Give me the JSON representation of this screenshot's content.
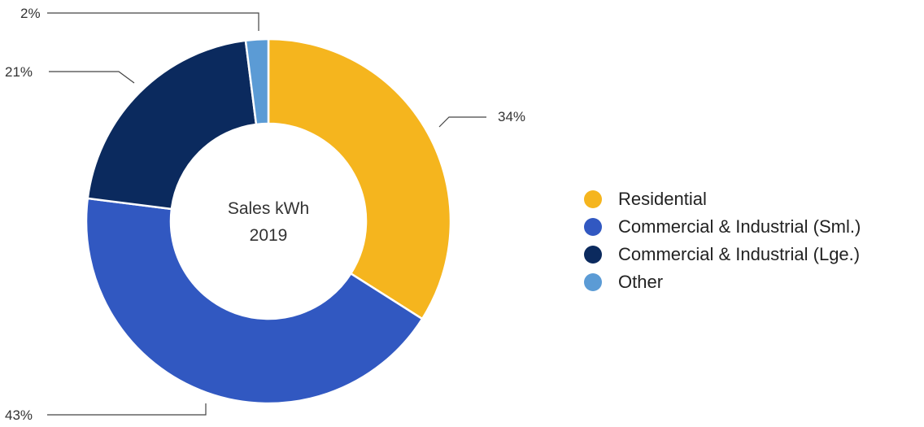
{
  "chart_data": {
    "type": "pie",
    "donut": true,
    "title": "",
    "center_label": [
      "Sales kWh",
      "2019"
    ],
    "series": [
      {
        "name": "Residential",
        "value": 34,
        "label": "34%",
        "color": "#F5B51E"
      },
      {
        "name": "Commercial & Industrial (Sml.)",
        "value": 43,
        "label": "43%",
        "color": "#3158C1"
      },
      {
        "name": "Commercial & Industrial (Lge.)",
        "value": 21,
        "label": "21%",
        "color": "#0B2A5E"
      },
      {
        "name": "Other",
        "value": 2,
        "label": "2%",
        "color": "#5B9BD5"
      }
    ],
    "legend_position": "right"
  }
}
